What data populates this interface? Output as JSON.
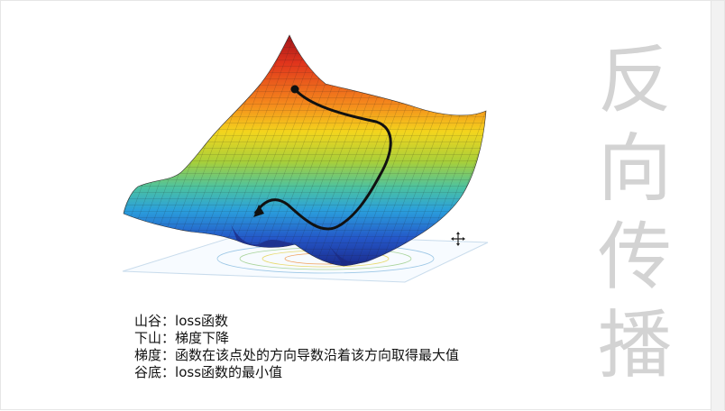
{
  "slide": {
    "title_chars": [
      "反",
      "向",
      "传",
      "播"
    ],
    "notes": [
      {
        "term": "山谷",
        "sep": "：",
        "desc": "loss函数"
      },
      {
        "term": "下山",
        "sep": "：",
        "desc": "梯度下降"
      },
      {
        "term": "梯度",
        "sep": "：",
        "desc": "函数在该点处的方向导数沿着该方向取得最大值"
      },
      {
        "term": "谷底",
        "sep": "：",
        "desc": "loss函数的最小值"
      }
    ],
    "figure_icon": "3d-loss-surface-illustration",
    "cursor_icon": "move-cursor-icon"
  }
}
